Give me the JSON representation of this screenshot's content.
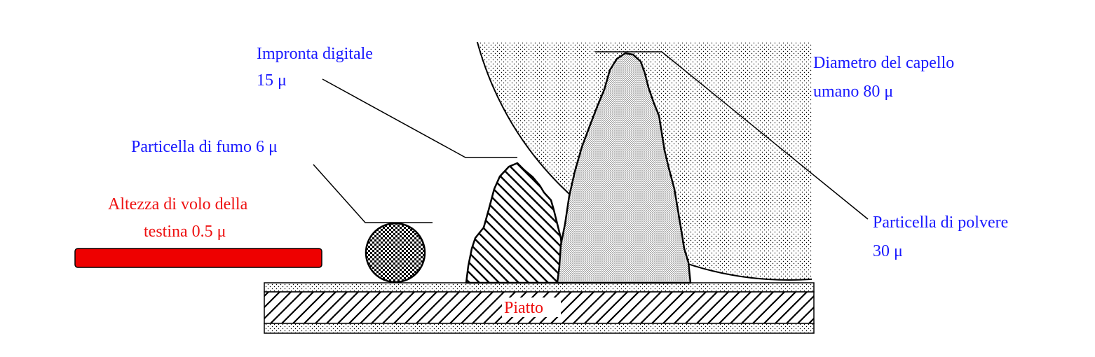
{
  "labels": {
    "fingerprint": {
      "line1": "Impronta digitale",
      "line2": "15 μ"
    },
    "hair": {
      "line1": "Diametro del capello",
      "line2": "umano 80 μ"
    },
    "smoke": {
      "line1": "Particella di fumo 6 μ"
    },
    "head_height": {
      "line1": "Altezza di volo della",
      "line2": "testina  0.5 μ"
    },
    "dust": {
      "line1": "Particella di polvere",
      "line2": "30 μ"
    },
    "platter": {
      "line1": "Piatto"
    }
  },
  "colors": {
    "label_blue": "#1a1aff",
    "label_red": "#ee1111",
    "head_fill": "#ee0000",
    "outline": "#000000"
  }
}
